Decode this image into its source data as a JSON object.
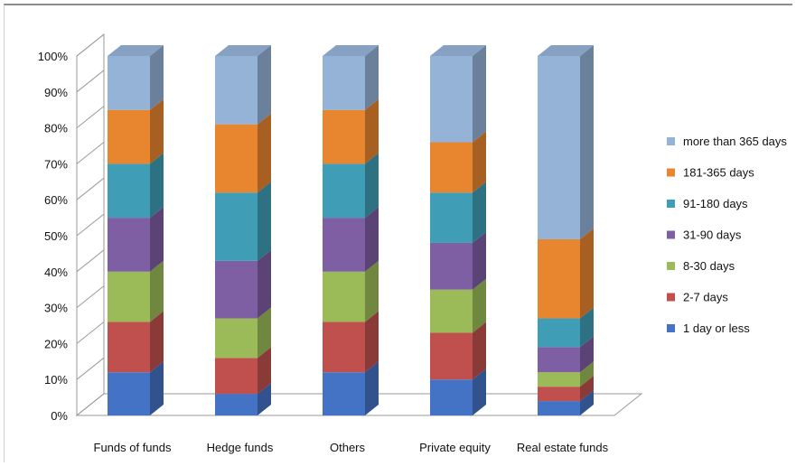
{
  "chart_data": {
    "type": "bar",
    "stacked": true,
    "three_d": true,
    "categories": [
      "Funds of funds",
      "Hedge funds",
      "Others",
      "Private equity",
      "Real estate funds"
    ],
    "series": [
      {
        "name": "1 day or less",
        "color": "#4472c4",
        "values": [
          12,
          6,
          12,
          10,
          4
        ]
      },
      {
        "name": "2-7 days",
        "color": "#c0504d",
        "values": [
          14,
          10,
          14,
          13,
          4
        ]
      },
      {
        "name": "8-30 days",
        "color": "#9bbb59",
        "values": [
          14,
          11,
          14,
          12,
          4
        ]
      },
      {
        "name": "31-90 days",
        "color": "#7f5fa3",
        "values": [
          15,
          16,
          15,
          13,
          7
        ]
      },
      {
        "name": "91-180 days",
        "color": "#3f9db5",
        "values": [
          15,
          19,
          15,
          14,
          8
        ]
      },
      {
        "name": "181-365 days",
        "color": "#e8862f",
        "values": [
          15,
          19,
          15,
          14,
          22
        ]
      },
      {
        "name": "more than 365 days",
        "color": "#95b3d7",
        "values": [
          15,
          19,
          15,
          24,
          51
        ]
      }
    ],
    "yticks": [
      "0%",
      "10%",
      "20%",
      "30%",
      "40%",
      "50%",
      "60%",
      "70%",
      "80%",
      "90%",
      "100%"
    ],
    "ylim": [
      0,
      100
    ],
    "legend": "right",
    "grid": true
  }
}
